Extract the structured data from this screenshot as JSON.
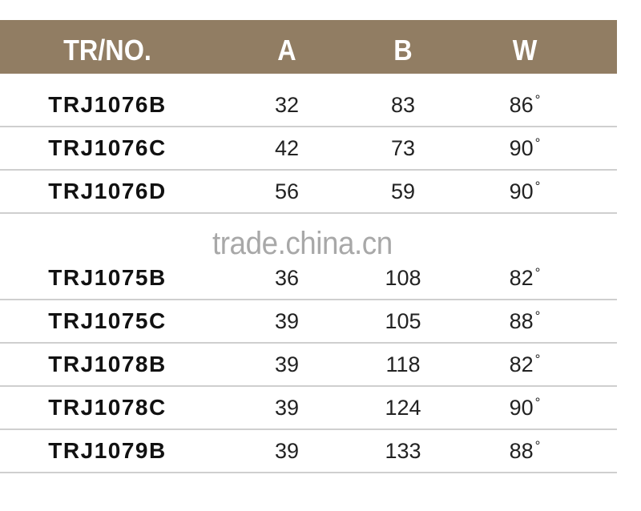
{
  "header": {
    "columns": [
      "TR/NO.",
      "A",
      "B",
      "W"
    ]
  },
  "degree_symbol": "°",
  "group1": [
    {
      "tr_no": "TRJ1076B",
      "a": "32",
      "b": "83",
      "w": "86"
    },
    {
      "tr_no": "TRJ1076C",
      "a": "42",
      "b": "73",
      "w": "90"
    },
    {
      "tr_no": "TRJ1076D",
      "a": "56",
      "b": "59",
      "w": "90"
    }
  ],
  "group2": [
    {
      "tr_no": "TRJ1075B",
      "a": "36",
      "b": "108",
      "w": "82"
    },
    {
      "tr_no": "TRJ1075C",
      "a": "39",
      "b": "105",
      "w": "88"
    },
    {
      "tr_no": "TRJ1078B",
      "a": "39",
      "b": "118",
      "w": "82"
    },
    {
      "tr_no": "TRJ1078C",
      "a": "39",
      "b": "124",
      "w": "90"
    },
    {
      "tr_no": "TRJ1079B",
      "a": "39",
      "b": "133",
      "w": "88"
    }
  ],
  "watermark": "trade.china.cn",
  "colors": {
    "header_bg": "#917d63",
    "header_text": "#ffffff",
    "divider": "#cfcfcf"
  }
}
